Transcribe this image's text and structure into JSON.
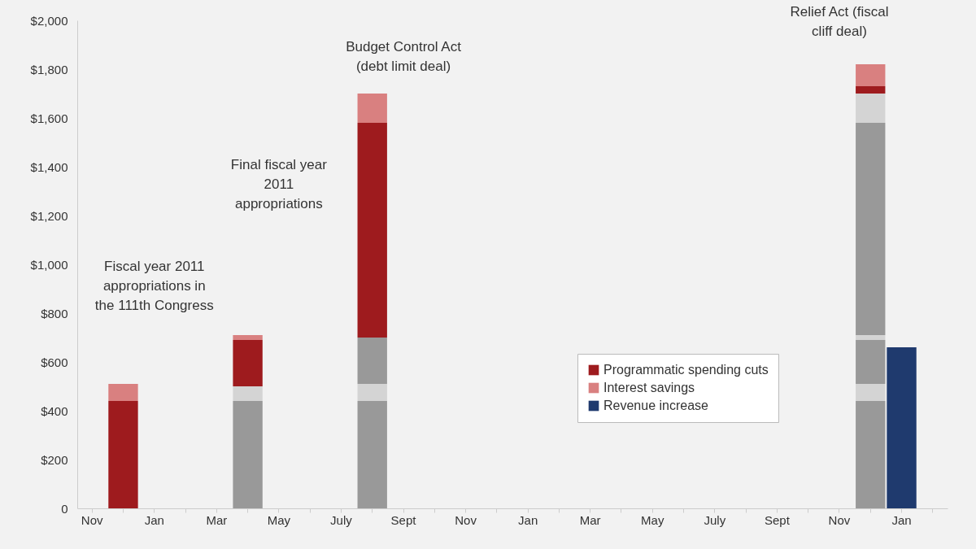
{
  "chart_data": {
    "type": "bar",
    "stacked": true,
    "categories": [
      "Nov",
      null,
      "Jan",
      null,
      "Mar",
      null,
      "May",
      null,
      "July",
      null,
      "Sept",
      null,
      "Nov",
      null,
      "Jan",
      null,
      "Mar",
      null,
      "May",
      null,
      "July",
      null,
      "Sept",
      null,
      "Nov",
      null,
      "Jan",
      null
    ],
    "ylim": [
      0,
      2000
    ],
    "yticks": [
      0,
      {
        "value": 200,
        "label": "$200"
      },
      {
        "value": 400,
        "label": "$400"
      },
      {
        "value": 600,
        "label": "$600"
      },
      {
        "value": 800,
        "label": "$800"
      },
      {
        "value": 1000,
        "label": "$1,000"
      },
      {
        "value": 1200,
        "label": "$1,200"
      },
      {
        "value": 1400,
        "label": "$1,400"
      },
      {
        "value": 1600,
        "label": "$1,600"
      },
      {
        "value": 1800,
        "label": "$1,800"
      },
      {
        "value": 2000,
        "label": "$2,000"
      }
    ],
    "series": [
      {
        "color": "#999999",
        "values": [
          null,
          null,
          null,
          null,
          null,
          440,
          null,
          null,
          null,
          440,
          null,
          null,
          null,
          null,
          null,
          null,
          null,
          null,
          null,
          null,
          null,
          null,
          null,
          null,
          null,
          440,
          null,
          null
        ]
      },
      {
        "color": "#d4d4d4",
        "values": [
          null,
          null,
          null,
          null,
          null,
          60,
          null,
          null,
          null,
          70,
          null,
          null,
          null,
          null,
          null,
          null,
          null,
          null,
          null,
          null,
          null,
          null,
          null,
          null,
          null,
          70,
          null,
          null
        ]
      },
      {
        "color": "#999999",
        "values": [
          null,
          null,
          null,
          null,
          null,
          null,
          null,
          null,
          null,
          190,
          null,
          null,
          null,
          null,
          null,
          null,
          null,
          null,
          null,
          null,
          null,
          null,
          null,
          null,
          null,
          180,
          null,
          null
        ]
      },
      {
        "color": "#d4d4d4",
        "values": [
          null,
          null,
          null,
          null,
          null,
          null,
          null,
          null,
          null,
          null,
          null,
          null,
          null,
          null,
          null,
          null,
          null,
          null,
          null,
          null,
          null,
          null,
          null,
          null,
          null,
          20,
          null,
          null
        ]
      },
      {
        "color": "#999999",
        "values": [
          null,
          null,
          null,
          null,
          null,
          null,
          null,
          null,
          null,
          null,
          null,
          null,
          null,
          null,
          null,
          null,
          null,
          null,
          null,
          null,
          null,
          null,
          null,
          null,
          null,
          870,
          null,
          null
        ]
      },
      {
        "color": "#d4d4d4",
        "values": [
          null,
          null,
          null,
          null,
          null,
          null,
          null,
          null,
          null,
          null,
          null,
          null,
          null,
          null,
          null,
          null,
          null,
          null,
          null,
          null,
          null,
          null,
          null,
          null,
          null,
          120,
          null,
          null
        ]
      },
      {
        "name": "Programmatic spending cuts",
        "color": "#9e1b1e",
        "values": [
          null,
          440,
          null,
          null,
          null,
          190,
          null,
          null,
          null,
          880,
          null,
          null,
          null,
          null,
          null,
          null,
          null,
          null,
          null,
          null,
          null,
          null,
          null,
          null,
          null,
          30,
          null,
          null
        ]
      },
      {
        "name": "Interest savings",
        "color": "#d98080",
        "values": [
          null,
          70,
          null,
          null,
          null,
          20,
          null,
          null,
          null,
          120,
          null,
          null,
          null,
          null,
          null,
          null,
          null,
          null,
          null,
          null,
          null,
          null,
          null,
          null,
          null,
          90,
          null,
          null
        ]
      },
      {
        "name": "Revenue increase",
        "color": "#1f3a6e",
        "values": [
          null,
          null,
          null,
          null,
          null,
          null,
          null,
          null,
          null,
          null,
          null,
          null,
          null,
          null,
          null,
          null,
          null,
          null,
          null,
          null,
          null,
          null,
          null,
          null,
          null,
          null,
          660,
          null
        ]
      }
    ],
    "legend": "bottom right",
    "annotations": [
      "Fiscal year 2011 appropriations in the 111th Congress",
      "Final fiscal year 2011 appropriations",
      "Budget Control Act (debt limit deal)",
      "Relief Act (fiscal cliff deal)"
    ]
  }
}
